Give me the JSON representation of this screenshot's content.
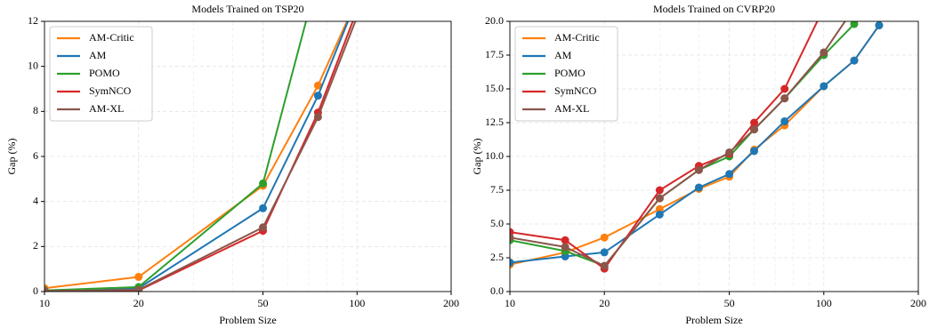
{
  "chart_data": [
    {
      "type": "line",
      "title": "Models Trained on TSP20",
      "xlabel": "Problem Size",
      "ylabel": "Gap (%)",
      "xscale": "log",
      "grid": true,
      "legend": "upper left",
      "x": [
        10,
        20,
        50,
        75,
        100
      ],
      "xlim": [
        10,
        200
      ],
      "xticks": [
        10,
        20,
        50,
        100,
        200
      ],
      "ylim": [
        0,
        12
      ],
      "yticks": [
        0,
        2,
        4,
        6,
        8,
        10,
        12
      ],
      "series": [
        {
          "name": "AM-Critic",
          "color": "#ff7f0e",
          "values": [
            0.15,
            0.65,
            4.7,
            9.15,
            13
          ]
        },
        {
          "name": "AM",
          "color": "#1f77b4",
          "values": [
            0.05,
            0.15,
            3.7,
            8.7,
            13
          ]
        },
        {
          "name": "POMO",
          "color": "#2ca02c",
          "values": [
            0.05,
            0.2,
            4.8,
            14,
            null
          ]
        },
        {
          "name": "SymNCO",
          "color": "#d62728",
          "values": [
            0.02,
            0.05,
            2.7,
            7.95,
            12.5
          ]
        },
        {
          "name": "AM-XL",
          "color": "#8c564b",
          "values": [
            0.02,
            0.08,
            2.85,
            7.75,
            12.2
          ]
        }
      ]
    },
    {
      "type": "line",
      "title": "Models Trained on CVRP20",
      "xlabel": "Problem Size",
      "ylabel": "Gap (%)",
      "xscale": "log",
      "grid": true,
      "legend": "upper left",
      "x": [
        10,
        15,
        20,
        30,
        40,
        50,
        60,
        75,
        100,
        125,
        150
      ],
      "xlim": [
        10,
        200
      ],
      "xticks": [
        10,
        20,
        50,
        100,
        200
      ],
      "ylim": [
        0,
        20
      ],
      "yticks": [
        {
          "value": 0,
          "label": "0.0"
        },
        {
          "value": 2.5,
          "label": "2.5"
        },
        {
          "value": 5,
          "label": "5.0"
        },
        {
          "value": 7.5,
          "label": "7.5"
        },
        {
          "value": 10,
          "label": "10.0"
        },
        {
          "value": 12.5,
          "label": "12.5"
        },
        {
          "value": 15,
          "label": "15.0"
        },
        {
          "value": 17.5,
          "label": "17.5"
        },
        {
          "value": 20,
          "label": "20.0"
        }
      ],
      "series": [
        {
          "name": "AM-Critic",
          "color": "#ff7f0e",
          "values": [
            2.0,
            2.9,
            4.0,
            6.1,
            7.6,
            8.5,
            10.5,
            12.3,
            15.2,
            17.1,
            19.7
          ]
        },
        {
          "name": "AM",
          "color": "#1f77b4",
          "values": [
            2.15,
            2.6,
            2.9,
            5.7,
            7.7,
            8.7,
            10.4,
            12.6,
            15.2,
            17.1,
            19.7
          ]
        },
        {
          "name": "POMO",
          "color": "#2ca02c",
          "values": [
            3.8,
            3.0,
            1.9,
            6.9,
            9.0,
            10.0,
            12.0,
            14.3,
            17.5,
            19.8,
            22
          ]
        },
        {
          "name": "SymNCO",
          "color": "#d62728",
          "values": [
            4.4,
            3.8,
            1.7,
            7.5,
            9.3,
            10.2,
            12.5,
            15.0,
            21,
            null,
            null
          ]
        },
        {
          "name": "AM-XL",
          "color": "#8c564b",
          "values": [
            4.0,
            3.3,
            1.9,
            6.9,
            9.0,
            10.3,
            12.0,
            14.3,
            17.7,
            21,
            null
          ]
        }
      ]
    }
  ]
}
